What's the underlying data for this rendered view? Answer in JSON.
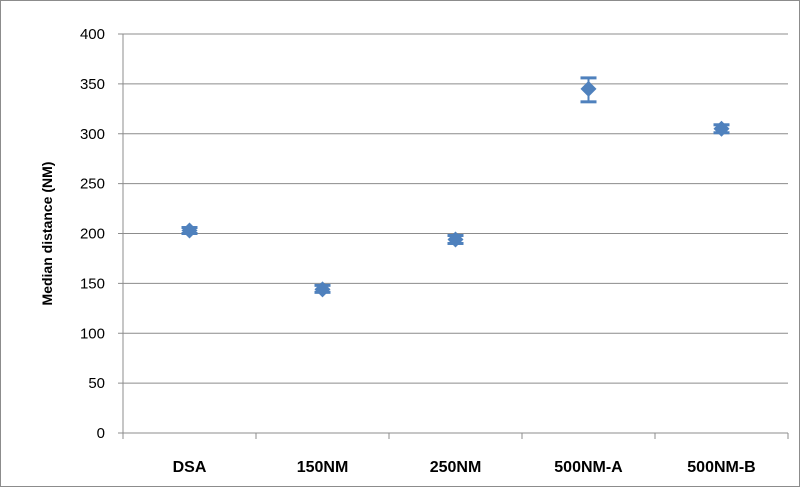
{
  "chart_data": {
    "type": "scatter",
    "title": "",
    "xlabel": "",
    "ylabel": "Median distance (NM)",
    "categories": [
      "DSA",
      "150NM",
      "250NM",
      "500NM-A",
      "500NM-B"
    ],
    "ylim": [
      0,
      400
    ],
    "yticks": [
      0,
      50,
      100,
      150,
      200,
      250,
      300,
      350,
      400
    ],
    "grid": true,
    "legend": "none",
    "series": [
      {
        "values": [
          203,
          144,
          194,
          345,
          305
        ],
        "error_low": [
          200,
          141,
          190,
          332,
          301
        ],
        "error_high": [
          206,
          148,
          198,
          356,
          309
        ],
        "marker": "diamond",
        "color": "#4f81bd"
      }
    ]
  }
}
